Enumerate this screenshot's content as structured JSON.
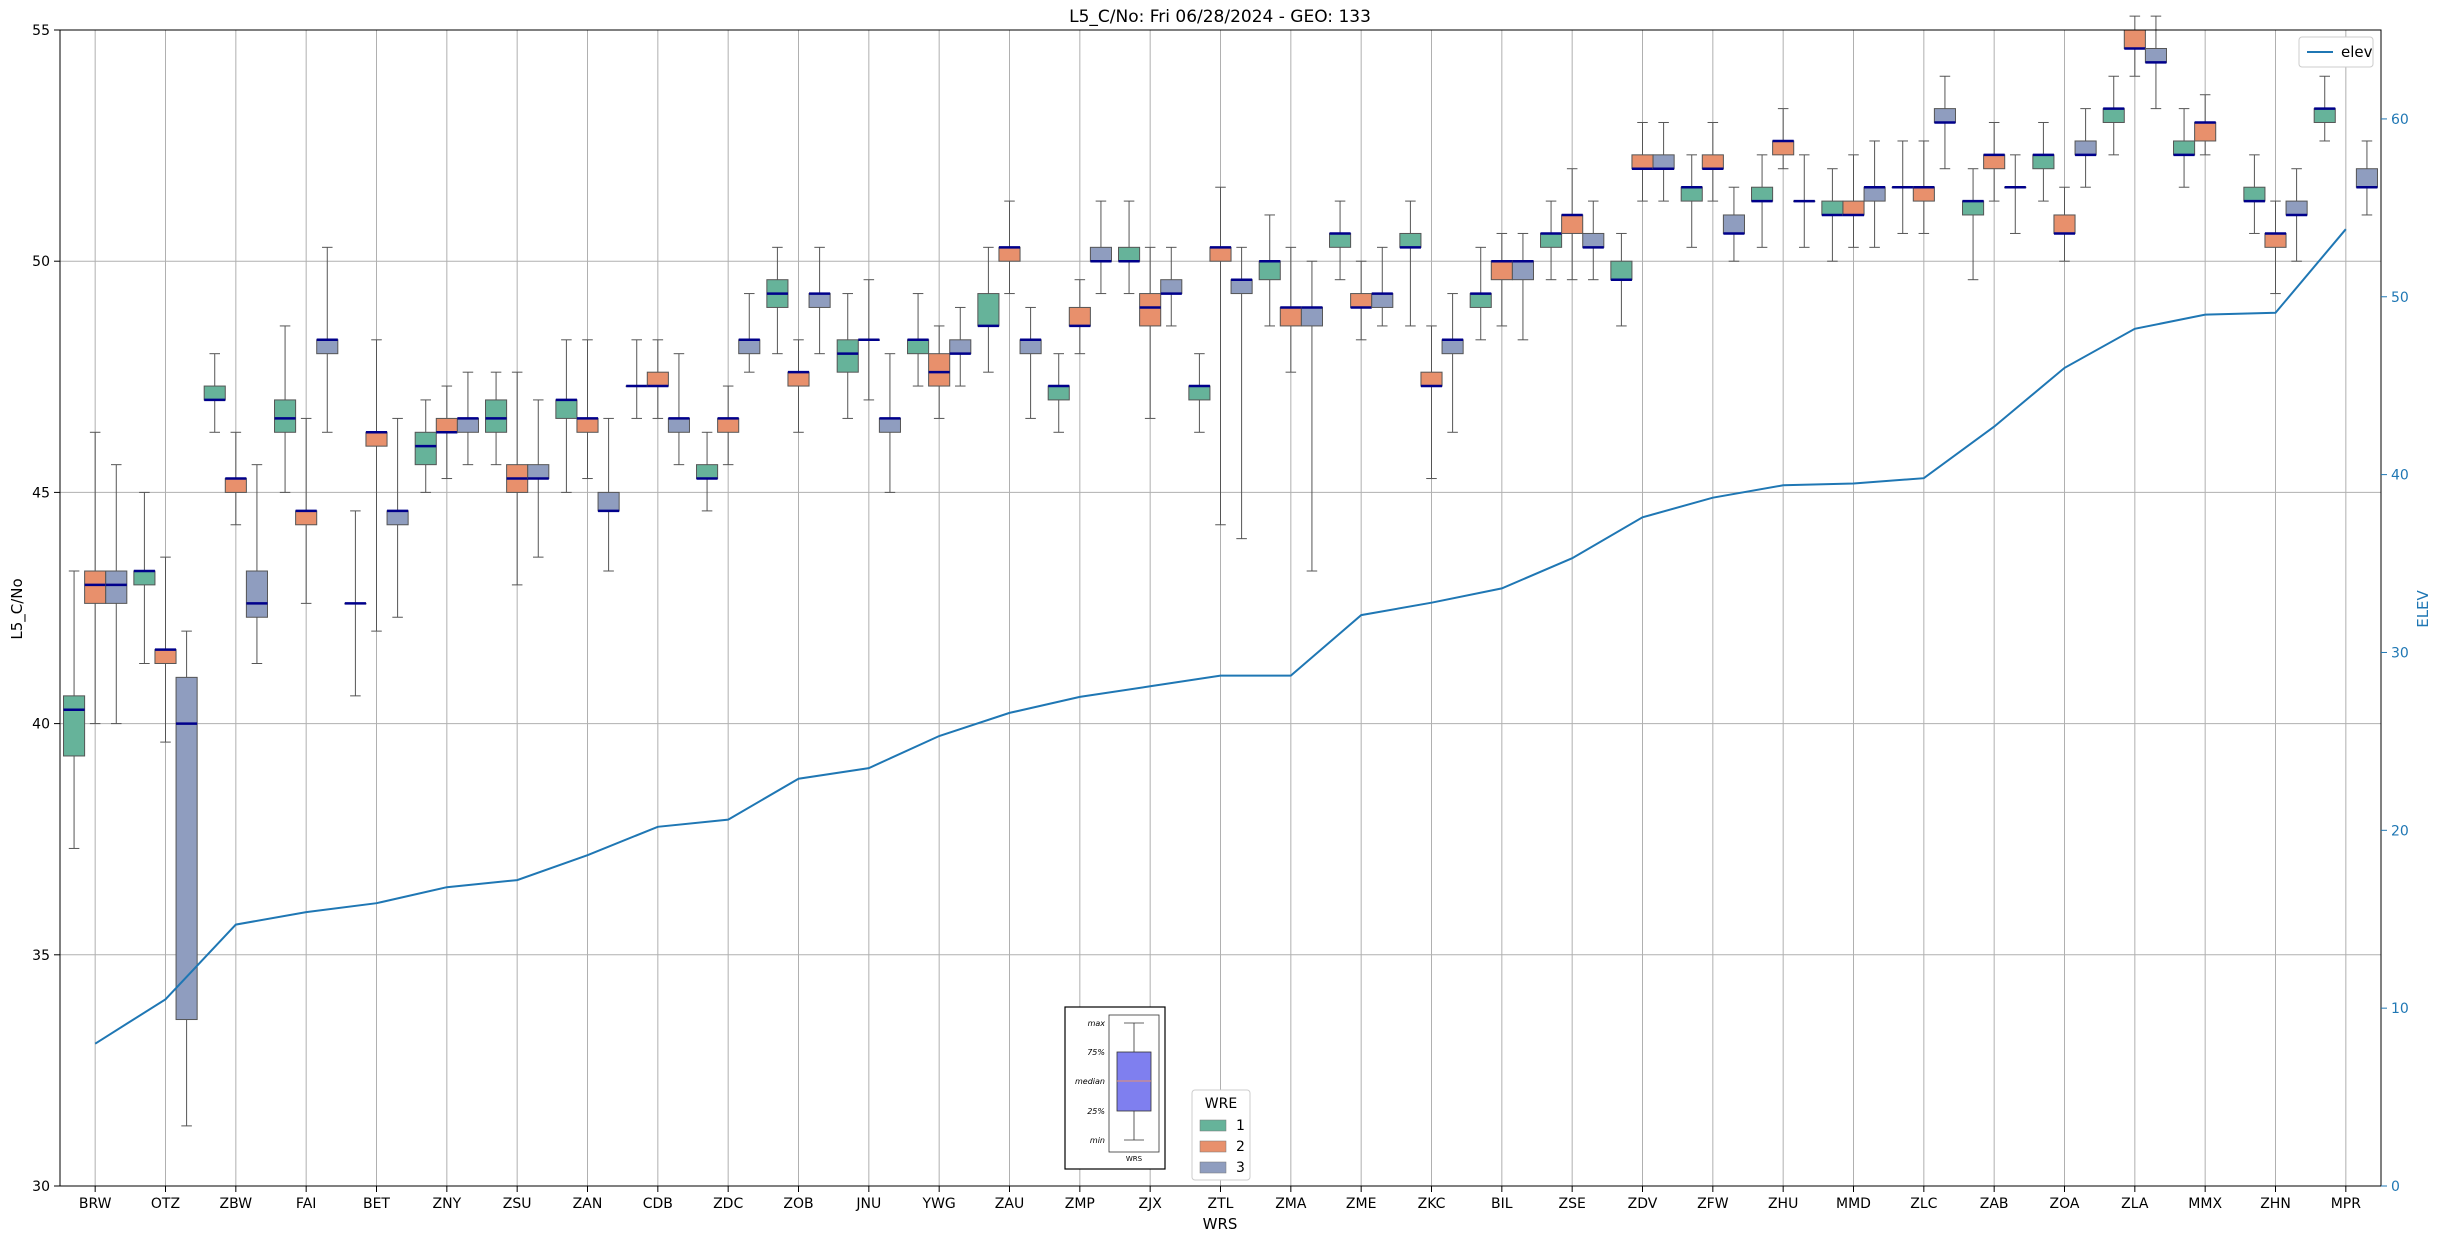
{
  "chart_data": {
    "type": "box",
    "title": "L5_C/No: Fri 06/28/2024 - GEO: 133",
    "xlabel": "WRS",
    "ylabel": "L5_C/No",
    "y2label": "ELEV",
    "ylim": [
      30,
      55
    ],
    "y2lim": [
      0,
      65
    ],
    "yticks": [
      30,
      35,
      40,
      45,
      50,
      55
    ],
    "y2ticks": [
      0,
      10,
      20,
      30,
      40,
      50,
      60
    ],
    "grid": true,
    "categories": [
      "BRW",
      "OTZ",
      "ZBW",
      "FAI",
      "BET",
      "ZNY",
      "ZSU",
      "ZAN",
      "CDB",
      "ZDC",
      "ZOB",
      "JNU",
      "YWG",
      "ZAU",
      "ZMP",
      "ZJX",
      "ZTL",
      "ZMA",
      "ZME",
      "ZKC",
      "BIL",
      "ZSE",
      "ZDV",
      "ZFW",
      "ZHU",
      "MMD",
      "ZLC",
      "ZAB",
      "ZOA",
      "ZLA",
      "MMX",
      "ZHN",
      "MPR"
    ],
    "legend": {
      "title": "WRE",
      "placement": "bottom-center",
      "entries": [
        {
          "label": "1",
          "color": "#66b39a"
        },
        {
          "label": "2",
          "color": "#e8906c"
        },
        {
          "label": "3",
          "color": "#8f9dbf"
        }
      ]
    },
    "line_legend": {
      "placement": "top-right",
      "label": "elev",
      "color": "#1f77b4"
    },
    "box_key": {
      "placement": "bottom-center",
      "labels": [
        "max",
        "75%",
        "median",
        "25%",
        "min"
      ],
      "xlabel": "WRS"
    },
    "series_colors": {
      "1": "#66b39a",
      "2": "#e8906c",
      "3": "#8f9dbf",
      "median": "#00008b",
      "elev": "#1f77b4"
    },
    "elev": [
      8,
      10.5,
      14.7,
      15.4,
      15.9,
      16.8,
      17.2,
      18.6,
      20.2,
      20.6,
      22.9,
      23.5,
      25.3,
      26.6,
      27.5,
      28.1,
      28.7,
      28.7,
      32.1,
      32.8,
      33.6,
      35.3,
      37.6,
      38.7,
      39.4,
      39.5,
      39.8,
      42.7,
      46.0,
      48.2,
      49.0,
      49.1,
      53.8
    ],
    "boxes": [
      {
        "wrs": "BRW",
        "wre": "1",
        "min": 37.3,
        "q1": 39.3,
        "median": 40.3,
        "q3": 40.6,
        "max": 43.3
      },
      {
        "wrs": "BRW",
        "wre": "2",
        "min": 40.0,
        "q1": 42.6,
        "median": 43.0,
        "q3": 43.3,
        "max": 46.3
      },
      {
        "wrs": "BRW",
        "wre": "3",
        "min": 40.0,
        "q1": 42.6,
        "median": 43.0,
        "q3": 43.3,
        "max": 45.6
      },
      {
        "wrs": "OTZ",
        "wre": "1",
        "min": 41.3,
        "q1": 43.0,
        "median": 43.3,
        "q3": 43.3,
        "max": 45.0
      },
      {
        "wrs": "OTZ",
        "wre": "2",
        "min": 39.6,
        "q1": 41.3,
        "median": 41.6,
        "q3": 41.6,
        "max": 43.6
      },
      {
        "wrs": "OTZ",
        "wre": "3",
        "min": 31.3,
        "q1": 33.6,
        "median": 40.0,
        "q3": 41.0,
        "max": 42.0
      },
      {
        "wrs": "ZBW",
        "wre": "1",
        "min": 46.3,
        "q1": 47.0,
        "median": 47.0,
        "q3": 47.3,
        "max": 48.0
      },
      {
        "wrs": "ZBW",
        "wre": "2",
        "min": 44.3,
        "q1": 45.0,
        "median": 45.3,
        "q3": 45.3,
        "max": 46.3
      },
      {
        "wrs": "ZBW",
        "wre": "3",
        "min": 41.3,
        "q1": 42.3,
        "median": 42.6,
        "q3": 43.3,
        "max": 45.6
      },
      {
        "wrs": "FAI",
        "wre": "1",
        "min": 45.0,
        "q1": 46.3,
        "median": 46.6,
        "q3": 47.0,
        "max": 48.6
      },
      {
        "wrs": "FAI",
        "wre": "2",
        "min": 42.6,
        "q1": 44.3,
        "median": 44.6,
        "q3": 44.6,
        "max": 46.6
      },
      {
        "wrs": "FAI",
        "wre": "3",
        "min": 46.3,
        "q1": 48.0,
        "median": 48.3,
        "q3": 48.3,
        "max": 50.3
      },
      {
        "wrs": "BET",
        "wre": "1",
        "min": 40.6,
        "q1": 42.6,
        "median": 42.6,
        "q3": 42.6,
        "max": 44.6
      },
      {
        "wrs": "BET",
        "wre": "2",
        "min": 42.0,
        "q1": 46.0,
        "median": 46.3,
        "q3": 46.3,
        "max": 48.3
      },
      {
        "wrs": "BET",
        "wre": "3",
        "min": 42.3,
        "q1": 44.3,
        "median": 44.6,
        "q3": 44.6,
        "max": 46.6
      },
      {
        "wrs": "ZNY",
        "wre": "1",
        "min": 45.0,
        "q1": 45.6,
        "median": 46.0,
        "q3": 46.3,
        "max": 47.0
      },
      {
        "wrs": "ZNY",
        "wre": "2",
        "min": 45.3,
        "q1": 46.3,
        "median": 46.3,
        "q3": 46.6,
        "max": 47.3
      },
      {
        "wrs": "ZNY",
        "wre": "3",
        "min": 45.6,
        "q1": 46.3,
        "median": 46.6,
        "q3": 46.6,
        "max": 47.6
      },
      {
        "wrs": "ZSU",
        "wre": "1",
        "min": 45.6,
        "q1": 46.3,
        "median": 46.6,
        "q3": 47.0,
        "max": 47.6
      },
      {
        "wrs": "ZSU",
        "wre": "2",
        "min": 43.0,
        "q1": 45.0,
        "median": 45.3,
        "q3": 45.6,
        "max": 47.6
      },
      {
        "wrs": "ZSU",
        "wre": "3",
        "min": 43.6,
        "q1": 45.3,
        "median": 45.3,
        "q3": 45.6,
        "max": 47.0
      },
      {
        "wrs": "ZAN",
        "wre": "1",
        "min": 45.0,
        "q1": 46.6,
        "median": 47.0,
        "q3": 47.0,
        "max": 48.3
      },
      {
        "wrs": "ZAN",
        "wre": "2",
        "min": 45.3,
        "q1": 46.3,
        "median": 46.6,
        "q3": 46.6,
        "max": 48.3
      },
      {
        "wrs": "ZAN",
        "wre": "3",
        "min": 43.3,
        "q1": 44.6,
        "median": 44.6,
        "q3": 45.0,
        "max": 46.6
      },
      {
        "wrs": "CDB",
        "wre": "1",
        "min": 46.6,
        "q1": 47.3,
        "median": 47.3,
        "q3": 47.3,
        "max": 48.3
      },
      {
        "wrs": "CDB",
        "wre": "2",
        "min": 46.6,
        "q1": 47.3,
        "median": 47.3,
        "q3": 47.6,
        "max": 48.3
      },
      {
        "wrs": "CDB",
        "wre": "3",
        "min": 45.6,
        "q1": 46.3,
        "median": 46.6,
        "q3": 46.6,
        "max": 48.0
      },
      {
        "wrs": "ZDC",
        "wre": "1",
        "min": 44.6,
        "q1": 45.3,
        "median": 45.3,
        "q3": 45.6,
        "max": 46.3
      },
      {
        "wrs": "ZDC",
        "wre": "2",
        "min": 45.6,
        "q1": 46.3,
        "median": 46.6,
        "q3": 46.6,
        "max": 47.3
      },
      {
        "wrs": "ZDC",
        "wre": "3",
        "min": 47.6,
        "q1": 48.0,
        "median": 48.3,
        "q3": 48.3,
        "max": 49.3
      },
      {
        "wrs": "ZOB",
        "wre": "1",
        "min": 48.0,
        "q1": 49.0,
        "median": 49.3,
        "q3": 49.6,
        "max": 50.3
      },
      {
        "wrs": "ZOB",
        "wre": "2",
        "min": 46.3,
        "q1": 47.3,
        "median": 47.6,
        "q3": 47.6,
        "max": 48.3
      },
      {
        "wrs": "ZOB",
        "wre": "3",
        "min": 48.0,
        "q1": 49.0,
        "median": 49.3,
        "q3": 49.3,
        "max": 50.3
      },
      {
        "wrs": "JNU",
        "wre": "1",
        "min": 46.6,
        "q1": 47.6,
        "median": 48.0,
        "q3": 48.3,
        "max": 49.3
      },
      {
        "wrs": "JNU",
        "wre": "2",
        "min": 47.0,
        "q1": 48.3,
        "median": 48.3,
        "q3": 48.3,
        "max": 49.6
      },
      {
        "wrs": "JNU",
        "wre": "3",
        "min": 45.0,
        "q1": 46.3,
        "median": 46.6,
        "q3": 46.6,
        "max": 48.0
      },
      {
        "wrs": "YWG",
        "wre": "1",
        "min": 47.3,
        "q1": 48.0,
        "median": 48.3,
        "q3": 48.3,
        "max": 49.3
      },
      {
        "wrs": "YWG",
        "wre": "2",
        "min": 46.6,
        "q1": 47.3,
        "median": 47.6,
        "q3": 48.0,
        "max": 48.6
      },
      {
        "wrs": "YWG",
        "wre": "3",
        "min": 47.3,
        "q1": 48.0,
        "median": 48.0,
        "q3": 48.3,
        "max": 49.0
      },
      {
        "wrs": "ZAU",
        "wre": "1",
        "min": 47.6,
        "q1": 48.6,
        "median": 48.6,
        "q3": 49.3,
        "max": 50.3
      },
      {
        "wrs": "ZAU",
        "wre": "2",
        "min": 49.3,
        "q1": 50.0,
        "median": 50.3,
        "q3": 50.3,
        "max": 51.3
      },
      {
        "wrs": "ZAU",
        "wre": "3",
        "min": 46.6,
        "q1": 48.0,
        "median": 48.3,
        "q3": 48.3,
        "max": 49.0
      },
      {
        "wrs": "ZMP",
        "wre": "1",
        "min": 46.3,
        "q1": 47.0,
        "median": 47.3,
        "q3": 47.3,
        "max": 48.0
      },
      {
        "wrs": "ZMP",
        "wre": "2",
        "min": 48.0,
        "q1": 48.6,
        "median": 48.6,
        "q3": 49.0,
        "max": 49.6
      },
      {
        "wrs": "ZMP",
        "wre": "3",
        "min": 49.3,
        "q1": 50.0,
        "median": 50.0,
        "q3": 50.3,
        "max": 51.3
      },
      {
        "wrs": "ZJX",
        "wre": "1",
        "min": 49.3,
        "q1": 50.0,
        "median": 50.0,
        "q3": 50.3,
        "max": 51.3
      },
      {
        "wrs": "ZJX",
        "wre": "2",
        "min": 46.6,
        "q1": 48.6,
        "median": 49.0,
        "q3": 49.3,
        "max": 50.3
      },
      {
        "wrs": "ZJX",
        "wre": "3",
        "min": 48.6,
        "q1": 49.3,
        "median": 49.3,
        "q3": 49.6,
        "max": 50.3
      },
      {
        "wrs": "ZTL",
        "wre": "1",
        "min": 46.3,
        "q1": 47.0,
        "median": 47.3,
        "q3": 47.3,
        "max": 48.0
      },
      {
        "wrs": "ZTL",
        "wre": "2",
        "min": 44.3,
        "q1": 50.0,
        "median": 50.3,
        "q3": 50.3,
        "max": 51.6
      },
      {
        "wrs": "ZTL",
        "wre": "3",
        "min": 44.0,
        "q1": 49.3,
        "median": 49.6,
        "q3": 49.6,
        "max": 50.3
      },
      {
        "wrs": "ZMA",
        "wre": "1",
        "min": 48.6,
        "q1": 49.6,
        "median": 50.0,
        "q3": 50.0,
        "max": 51.0
      },
      {
        "wrs": "ZMA",
        "wre": "2",
        "min": 47.6,
        "q1": 48.6,
        "median": 49.0,
        "q3": 49.0,
        "max": 50.3
      },
      {
        "wrs": "ZMA",
        "wre": "3",
        "min": 43.3,
        "q1": 48.6,
        "median": 49.0,
        "q3": 49.0,
        "max": 50.0
      },
      {
        "wrs": "ZME",
        "wre": "1",
        "min": 49.6,
        "q1": 50.3,
        "median": 50.6,
        "q3": 50.6,
        "max": 51.3
      },
      {
        "wrs": "ZME",
        "wre": "2",
        "min": 48.3,
        "q1": 49.0,
        "median": 49.0,
        "q3": 49.3,
        "max": 50.0
      },
      {
        "wrs": "ZME",
        "wre": "3",
        "min": 48.6,
        "q1": 49.0,
        "median": 49.3,
        "q3": 49.3,
        "max": 50.3
      },
      {
        "wrs": "ZKC",
        "wre": "1",
        "min": 48.6,
        "q1": 50.3,
        "median": 50.3,
        "q3": 50.6,
        "max": 51.3
      },
      {
        "wrs": "ZKC",
        "wre": "2",
        "min": 45.3,
        "q1": 47.3,
        "median": 47.3,
        "q3": 47.6,
        "max": 48.6
      },
      {
        "wrs": "ZKC",
        "wre": "3",
        "min": 46.3,
        "q1": 48.0,
        "median": 48.3,
        "q3": 48.3,
        "max": 49.3
      },
      {
        "wrs": "BIL",
        "wre": "1",
        "min": 48.3,
        "q1": 49.0,
        "median": 49.3,
        "q3": 49.3,
        "max": 50.3
      },
      {
        "wrs": "BIL",
        "wre": "2",
        "min": 48.6,
        "q1": 49.6,
        "median": 50.0,
        "q3": 50.0,
        "max": 50.6
      },
      {
        "wrs": "BIL",
        "wre": "3",
        "min": 48.3,
        "q1": 49.6,
        "median": 50.0,
        "q3": 50.0,
        "max": 50.6
      },
      {
        "wrs": "ZSE",
        "wre": "1",
        "min": 49.6,
        "q1": 50.3,
        "median": 50.6,
        "q3": 50.6,
        "max": 51.3
      },
      {
        "wrs": "ZSE",
        "wre": "2",
        "min": 49.6,
        "q1": 50.6,
        "median": 51.0,
        "q3": 51.0,
        "max": 52.0
      },
      {
        "wrs": "ZSE",
        "wre": "3",
        "min": 49.6,
        "q1": 50.3,
        "median": 50.3,
        "q3": 50.6,
        "max": 51.3
      },
      {
        "wrs": "ZDV",
        "wre": "1",
        "min": 48.6,
        "q1": 49.6,
        "median": 49.6,
        "q3": 50.0,
        "max": 50.6
      },
      {
        "wrs": "ZDV",
        "wre": "2",
        "min": 51.3,
        "q1": 52.0,
        "median": 52.0,
        "q3": 52.3,
        "max": 53.0
      },
      {
        "wrs": "ZDV",
        "wre": "3",
        "min": 51.3,
        "q1": 52.0,
        "median": 52.0,
        "q3": 52.3,
        "max": 53.0
      },
      {
        "wrs": "ZFW",
        "wre": "1",
        "min": 50.3,
        "q1": 51.3,
        "median": 51.6,
        "q3": 51.6,
        "max": 52.3
      },
      {
        "wrs": "ZFW",
        "wre": "2",
        "min": 51.3,
        "q1": 52.0,
        "median": 52.0,
        "q3": 52.3,
        "max": 53.0
      },
      {
        "wrs": "ZFW",
        "wre": "3",
        "min": 50.0,
        "q1": 50.6,
        "median": 50.6,
        "q3": 51.0,
        "max": 51.6
      },
      {
        "wrs": "ZHU",
        "wre": "1",
        "min": 50.3,
        "q1": 51.3,
        "median": 51.3,
        "q3": 51.6,
        "max": 52.3
      },
      {
        "wrs": "ZHU",
        "wre": "2",
        "min": 52.0,
        "q1": 52.3,
        "median": 52.6,
        "q3": 52.6,
        "max": 53.3
      },
      {
        "wrs": "ZHU",
        "wre": "3",
        "min": 50.3,
        "q1": 51.3,
        "median": 51.3,
        "q3": 51.3,
        "max": 52.3
      },
      {
        "wrs": "MMD",
        "wre": "1",
        "min": 50.0,
        "q1": 51.0,
        "median": 51.0,
        "q3": 51.3,
        "max": 52.0
      },
      {
        "wrs": "MMD",
        "wre": "2",
        "min": 50.3,
        "q1": 51.0,
        "median": 51.0,
        "q3": 51.3,
        "max": 52.3
      },
      {
        "wrs": "MMD",
        "wre": "3",
        "min": 50.3,
        "q1": 51.3,
        "median": 51.6,
        "q3": 51.6,
        "max": 52.6
      },
      {
        "wrs": "ZLC",
        "wre": "1",
        "min": 50.6,
        "q1": 51.6,
        "median": 51.6,
        "q3": 51.6,
        "max": 52.6
      },
      {
        "wrs": "ZLC",
        "wre": "2",
        "min": 50.6,
        "q1": 51.3,
        "median": 51.6,
        "q3": 51.6,
        "max": 52.6
      },
      {
        "wrs": "ZLC",
        "wre": "3",
        "min": 52.0,
        "q1": 53.0,
        "median": 53.0,
        "q3": 53.3,
        "max": 54.0
      },
      {
        "wrs": "ZAB",
        "wre": "1",
        "min": 49.6,
        "q1": 51.0,
        "median": 51.3,
        "q3": 51.3,
        "max": 52.0
      },
      {
        "wrs": "ZAB",
        "wre": "2",
        "min": 51.3,
        "q1": 52.0,
        "median": 52.3,
        "q3": 52.3,
        "max": 53.0
      },
      {
        "wrs": "ZAB",
        "wre": "3",
        "min": 50.6,
        "q1": 51.6,
        "median": 51.6,
        "q3": 51.6,
        "max": 52.3
      },
      {
        "wrs": "ZOA",
        "wre": "1",
        "min": 51.3,
        "q1": 52.0,
        "median": 52.3,
        "q3": 52.3,
        "max": 53.0
      },
      {
        "wrs": "ZOA",
        "wre": "2",
        "min": 50.0,
        "q1": 50.6,
        "median": 50.6,
        "q3": 51.0,
        "max": 51.6
      },
      {
        "wrs": "ZOA",
        "wre": "3",
        "min": 51.6,
        "q1": 52.3,
        "median": 52.3,
        "q3": 52.6,
        "max": 53.3
      },
      {
        "wrs": "ZLA",
        "wre": "1",
        "min": 52.3,
        "q1": 53.0,
        "median": 53.3,
        "q3": 53.3,
        "max": 54.0
      },
      {
        "wrs": "ZLA",
        "wre": "2",
        "min": 54.0,
        "q1": 54.6,
        "median": 54.6,
        "q3": 55.0,
        "max": 55.3
      },
      {
        "wrs": "ZLA",
        "wre": "3",
        "min": 53.3,
        "q1": 54.3,
        "median": 54.3,
        "q3": 54.6,
        "max": 55.3
      },
      {
        "wrs": "MMX",
        "wre": "1",
        "min": 51.6,
        "q1": 52.3,
        "median": 52.3,
        "q3": 52.6,
        "max": 53.3
      },
      {
        "wrs": "MMX",
        "wre": "2",
        "min": 52.3,
        "q1": 52.6,
        "median": 53.0,
        "q3": 53.0,
        "max": 53.6
      },
      {
        "wrs": "MMX",
        "wre": "3",
        "min": null,
        "q1": null,
        "median": null,
        "q3": null,
        "max": null
      },
      {
        "wrs": "ZHN",
        "wre": "1",
        "min": 50.6,
        "q1": 51.3,
        "median": 51.3,
        "q3": 51.6,
        "max": 52.3
      },
      {
        "wrs": "ZHN",
        "wre": "2",
        "min": 49.3,
        "q1": 50.3,
        "median": 50.6,
        "q3": 50.6,
        "max": 51.3
      },
      {
        "wrs": "ZHN",
        "wre": "3",
        "min": 50.0,
        "q1": 51.0,
        "median": 51.0,
        "q3": 51.3,
        "max": 52.0
      },
      {
        "wrs": "MPR",
        "wre": "1",
        "min": 52.6,
        "q1": 53.0,
        "median": 53.3,
        "q3": 53.3,
        "max": 54.0
      },
      {
        "wrs": "MPR",
        "wre": "3",
        "min": 51.0,
        "q1": 51.6,
        "median": 51.6,
        "q3": 52.0,
        "max": 52.6
      }
    ]
  }
}
